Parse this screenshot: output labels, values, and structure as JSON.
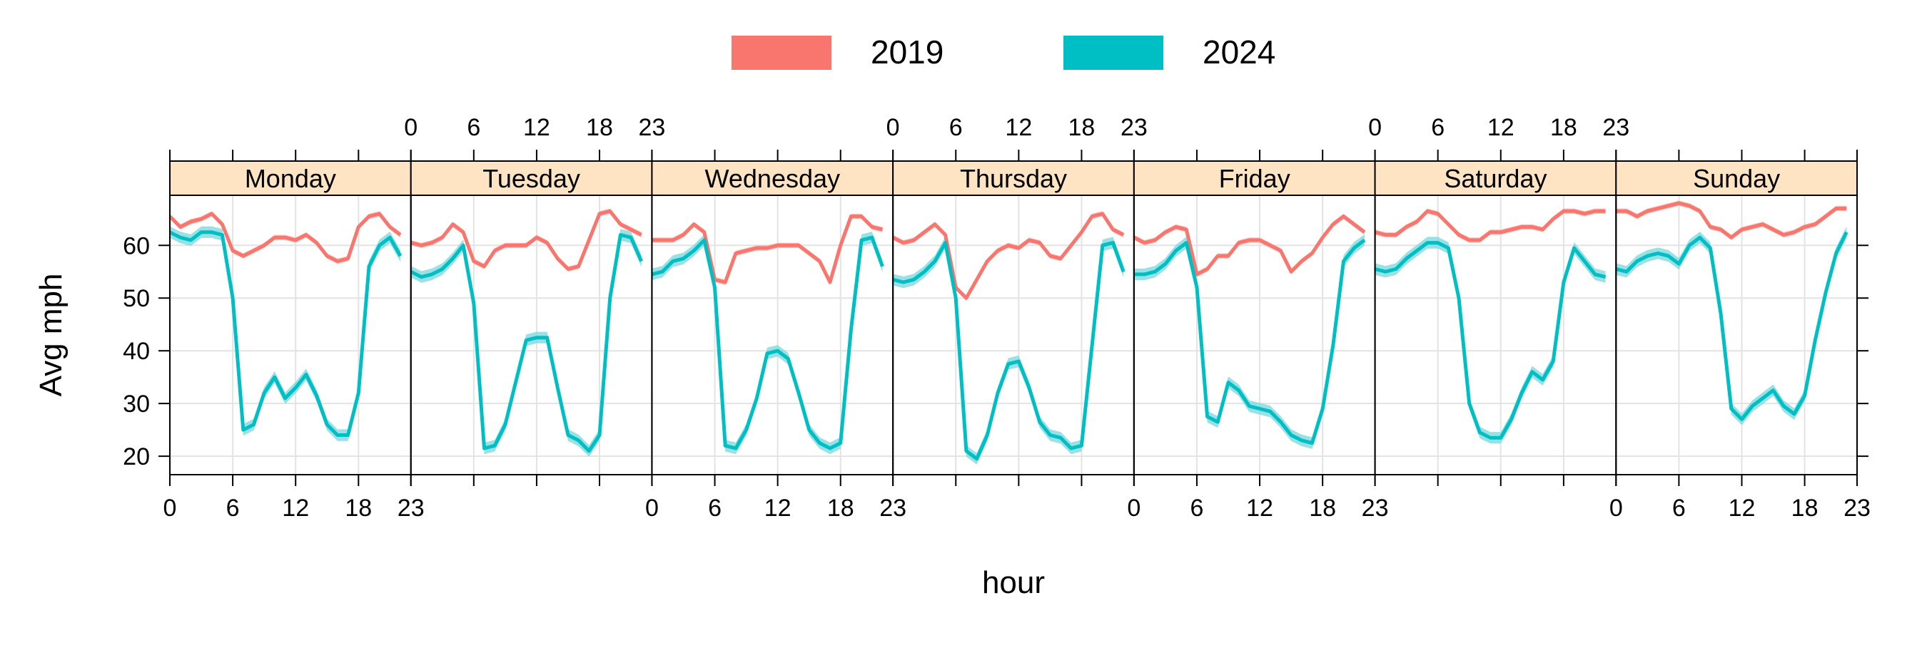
{
  "chart_data": {
    "type": "line",
    "layout": "trellis-panels",
    "xlabel": "hour",
    "ylabel": "Avg mph",
    "xlim": [
      0,
      23
    ],
    "ylim": [
      16.5,
      69.5
    ],
    "x_ticks": [
      0,
      6,
      12,
      18,
      23
    ],
    "y_ticks": [
      20,
      30,
      40,
      50,
      60
    ],
    "legend": {
      "position": "top",
      "entries": [
        {
          "label": "2019",
          "color": "#F8766D"
        },
        {
          "label": "2024",
          "color": "#00BFC4"
        }
      ]
    },
    "band_colors": {
      "2019": "#F8B4AF",
      "2024": "#7FDADD"
    },
    "strip_color": "#FFE4C4",
    "grid": true,
    "panels": [
      {
        "label": "Monday",
        "series": [
          {
            "name": "2019",
            "values": [
              65.5,
              63.5,
              64.5,
              65,
              66,
              64,
              59,
              58,
              59,
              60,
              61.5,
              61.5,
              61,
              62,
              60.5,
              58,
              57,
              57.5,
              63.5,
              65.5,
              66,
              63.5,
              62
            ]
          },
          {
            "name": "2024",
            "values": [
              62.5,
              61.5,
              61,
              62.5,
              62.5,
              62,
              50,
              25,
              26,
              32,
              35,
              31,
              33,
              35.5,
              31.5,
              26,
              24,
              24,
              32,
              56,
              60,
              61.5,
              58
            ]
          }
        ]
      },
      {
        "label": "Tuesday",
        "series": [
          {
            "name": "2019",
            "values": [
              60.5,
              60,
              60.5,
              61.5,
              64,
              62.5,
              57,
              56,
              59,
              60,
              60,
              60,
              61.5,
              60.5,
              57.5,
              55.5,
              56,
              61,
              66,
              66.5,
              64,
              63,
              62
            ]
          },
          {
            "name": "2024",
            "values": [
              55,
              54,
              54.5,
              55.5,
              57.5,
              60,
              49,
              21.5,
              22,
              26,
              34,
              42,
              42.5,
              42.5,
              33,
              24,
              23,
              21,
              24,
              50,
              62,
              61.5,
              57
            ]
          }
        ]
      },
      {
        "label": "Wednesday",
        "series": [
          {
            "name": "2019",
            "values": [
              61,
              61,
              61,
              62,
              64,
              62.5,
              53.5,
              53,
              58.5,
              59,
              59.5,
              59.5,
              60,
              60,
              60,
              58.5,
              57,
              53,
              60,
              65.5,
              65.5,
              63.5,
              63
            ]
          },
          {
            "name": "2024",
            "values": [
              54.5,
              55,
              57,
              57.5,
              59,
              61,
              52,
              22,
              21.5,
              25,
              31,
              39.5,
              40,
              38.5,
              32,
              25,
              22.5,
              21.5,
              22.5,
              44,
              61,
              61.5,
              56
            ]
          }
        ]
      },
      {
        "label": "Thursday",
        "series": [
          {
            "name": "2019",
            "values": [
              61.5,
              60.5,
              61,
              62.5,
              64,
              62,
              52,
              50,
              53.5,
              57,
              59,
              60,
              59.5,
              61,
              60.5,
              58,
              57.5,
              60,
              62.5,
              65.5,
              66,
              63,
              62
            ]
          },
          {
            "name": "2024",
            "values": [
              53.5,
              53,
              53.5,
              55,
              57,
              60.5,
              50,
              21,
              19.5,
              24,
              32,
              37.5,
              38,
              33,
              26.5,
              24,
              23.5,
              21.5,
              22,
              41,
              60,
              60.5,
              55
            ]
          }
        ]
      },
      {
        "label": "Friday",
        "series": [
          {
            "name": "2019",
            "values": [
              61.5,
              60.5,
              61,
              62.5,
              63.5,
              63,
              54.5,
              55.5,
              58,
              58,
              60.5,
              61,
              61,
              60,
              59,
              55,
              57,
              58.5,
              61.5,
              64,
              65.5,
              64,
              62.5
            ]
          },
          {
            "name": "2024",
            "values": [
              54.5,
              54.5,
              55,
              56.5,
              59,
              60.5,
              52,
              27.5,
              26.5,
              34,
              32.5,
              29.5,
              29,
              28.5,
              26.5,
              24,
              23,
              22.5,
              29,
              41,
              57,
              59.5,
              61
            ]
          }
        ]
      },
      {
        "label": "Saturday",
        "series": [
          {
            "name": "2019",
            "values": [
              62.5,
              62,
              62,
              63.5,
              64.5,
              66.5,
              66,
              64,
              62,
              61,
              61,
              62.5,
              62.5,
              63,
              63.5,
              63.5,
              63,
              65,
              66.5,
              66.5,
              66,
              66.5,
              66.5
            ]
          },
          {
            "name": "2024",
            "values": [
              55.5,
              55,
              55.5,
              57.5,
              59,
              60.5,
              60.5,
              59.5,
              50,
              30,
              24.5,
              23.5,
              23.5,
              27,
              32,
              36,
              34.5,
              38,
              53,
              59.5,
              57,
              54.5,
              54
            ]
          }
        ]
      },
      {
        "label": "Sunday",
        "series": [
          {
            "name": "2019",
            "values": [
              66.5,
              66.5,
              65.5,
              66.5,
              67,
              67.5,
              68,
              67.5,
              66.5,
              63.5,
              63,
              61.5,
              63,
              63.5,
              64,
              63,
              62,
              62.5,
              63.5,
              64,
              65.5,
              67,
              67
            ]
          },
          {
            "name": "2024",
            "values": [
              55.5,
              55,
              57,
              58,
              58.5,
              58,
              56.5,
              60,
              61.5,
              59.5,
              47,
              29,
              27,
              29.5,
              31,
              32.5,
              29.5,
              28,
              31.5,
              42,
              51,
              58.5,
              62.5
            ]
          }
        ]
      }
    ]
  }
}
